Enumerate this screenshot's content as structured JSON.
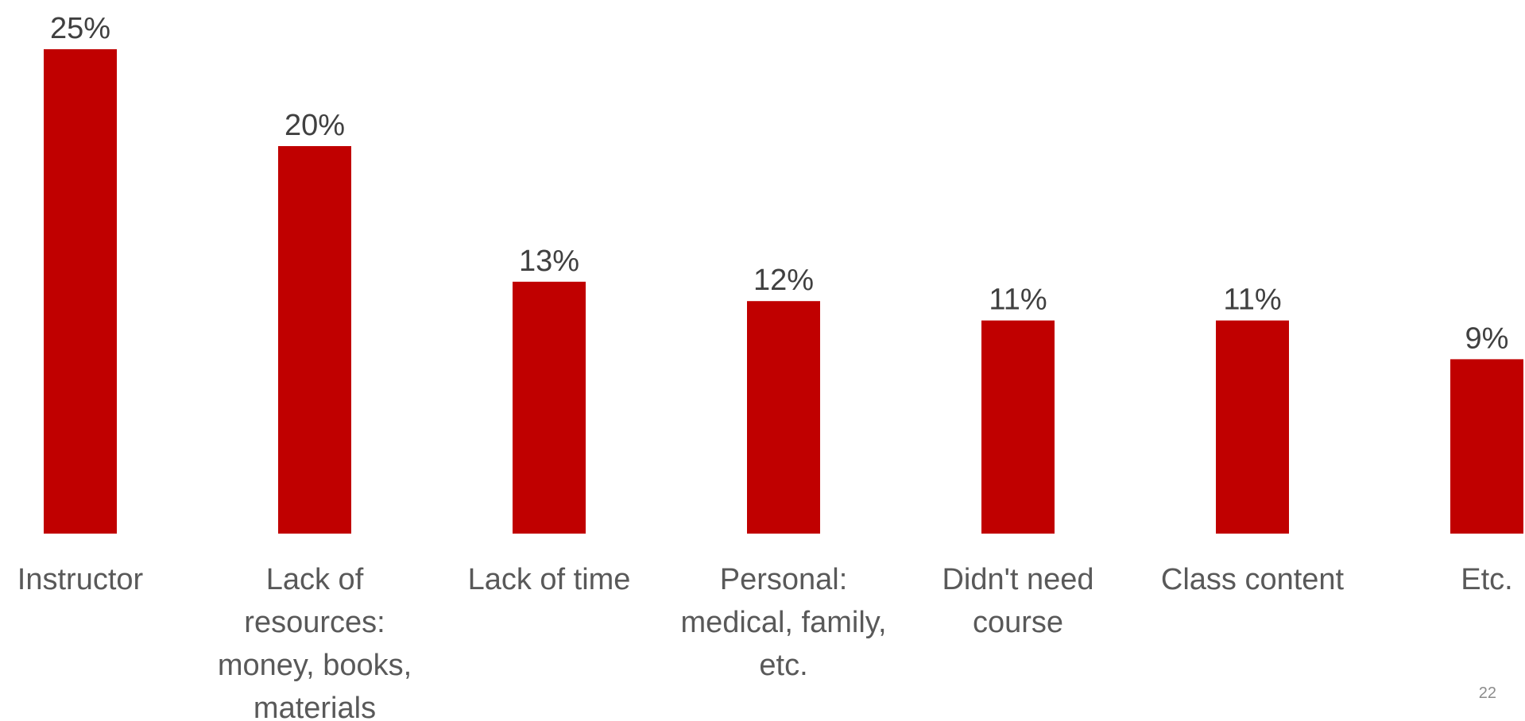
{
  "chart_data": {
    "type": "bar",
    "categories": [
      [
        "Instructor"
      ],
      [
        "Lack of",
        "resources:",
        "money, books,",
        "materials"
      ],
      [
        "Lack of time"
      ],
      [
        "Personal:",
        "medical, family,",
        "etc."
      ],
      [
        "Didn't need",
        "course"
      ],
      [
        "Class content"
      ],
      [
        "Etc."
      ]
    ],
    "values": [
      25,
      20,
      13,
      12,
      11,
      11,
      9
    ],
    "data_labels": [
      "25%",
      "20%",
      "13%",
      "12%",
      "11%",
      "11%",
      "9%"
    ],
    "title": "",
    "xlabel": "",
    "ylabel": "",
    "ylim": [
      0,
      25
    ],
    "grid": false,
    "legend": "none",
    "bar_color": "#C00000",
    "label_color": "#404040",
    "category_color": "#595959"
  },
  "slide": {
    "page_number": "22"
  }
}
